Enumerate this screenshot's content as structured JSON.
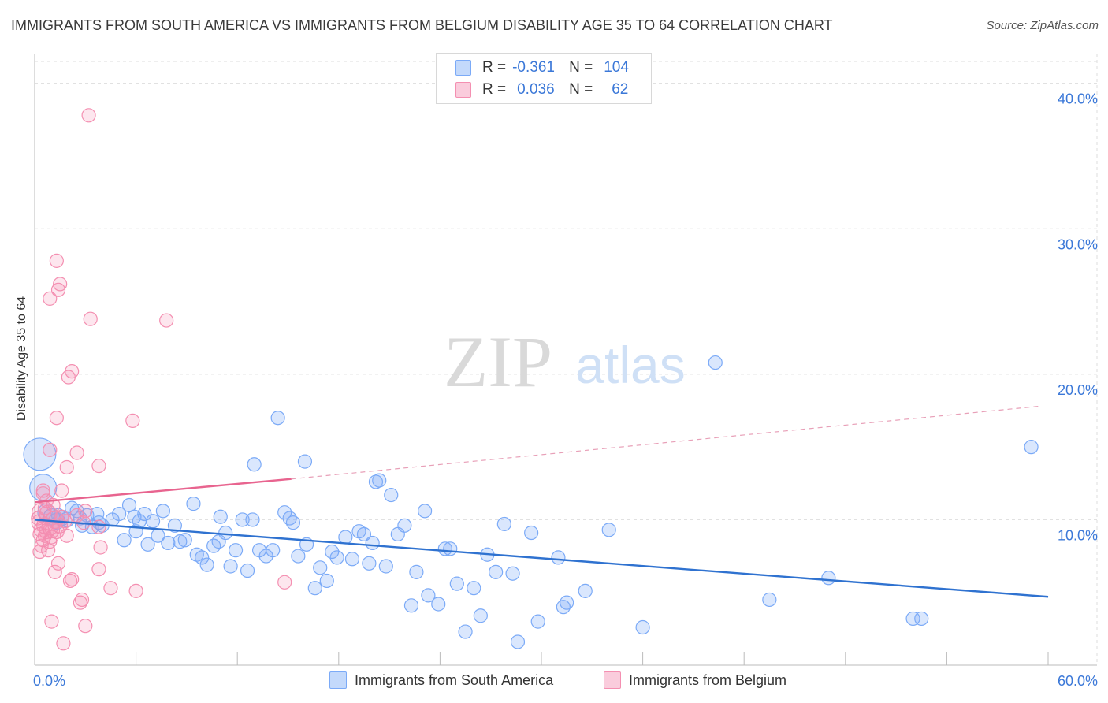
{
  "title": "IMMIGRANTS FROM SOUTH AMERICA VS IMMIGRANTS FROM BELGIUM DISABILITY AGE 35 TO 64 CORRELATION CHART",
  "source": "Source: ZipAtlas.com",
  "watermark": {
    "zip": "ZIP",
    "atlas": "atlas"
  },
  "legend": {
    "south_america": {
      "r_label": "R =",
      "r_value": "-0.361",
      "n_label": "N =",
      "n_value": "104",
      "color": "#7baaf7"
    },
    "belgium": {
      "r_label": "R =",
      "r_value": "0.036",
      "n_label": "N =",
      "n_value": "62",
      "color": "#f48fb1"
    }
  },
  "chart_data": {
    "type": "scatter",
    "title": "IMMIGRANTS FROM SOUTH AMERICA VS IMMIGRANTS FROM BELGIUM DISABILITY AGE 35 TO 64 CORRELATION CHART",
    "xlabel": "",
    "ylabel": "Disability Age 35 to 64",
    "xlim": [
      0,
      60
    ],
    "ylim": [
      0,
      41.5
    ],
    "x_tick_labels": [
      "0.0%",
      "60.0%"
    ],
    "y_ticks": [
      10,
      20,
      30,
      40
    ],
    "y_tick_labels": [
      "10.0%",
      "20.0%",
      "30.0%",
      "40.0%"
    ],
    "grid": true,
    "legend_position": "top-center",
    "series": [
      {
        "name": "Immigrants from South America",
        "color": "#7baaf7",
        "trend": {
          "x": [
            0,
            60
          ],
          "y": [
            10.0,
            4.7
          ],
          "style": "solid"
        },
        "points": [
          [
            0.3,
            14.5
          ],
          [
            0.5,
            12.2
          ],
          [
            0.7,
            10.5
          ],
          [
            1.0,
            10.2
          ],
          [
            1.3,
            9.9
          ],
          [
            1.6,
            10.1
          ],
          [
            1.9,
            10.0
          ],
          [
            2.2,
            10.8
          ],
          [
            2.5,
            10.6
          ],
          [
            2.8,
            9.6
          ],
          [
            3.1,
            10.3
          ],
          [
            3.4,
            9.5
          ],
          [
            3.7,
            10.4
          ],
          [
            4.0,
            9.6
          ],
          [
            4.6,
            10.0
          ],
          [
            5.0,
            10.4
          ],
          [
            5.3,
            8.6
          ],
          [
            5.6,
            11.0
          ],
          [
            5.9,
            10.2
          ],
          [
            6.2,
            9.9
          ],
          [
            6.5,
            10.4
          ],
          [
            6.7,
            8.3
          ],
          [
            7.0,
            9.9
          ],
          [
            7.3,
            8.9
          ],
          [
            7.6,
            10.6
          ],
          [
            7.9,
            8.4
          ],
          [
            8.3,
            9.6
          ],
          [
            8.6,
            8.5
          ],
          [
            8.9,
            8.6
          ],
          [
            9.4,
            11.1
          ],
          [
            9.6,
            7.6
          ],
          [
            9.9,
            7.4
          ],
          [
            10.2,
            6.9
          ],
          [
            10.6,
            8.2
          ],
          [
            10.9,
            8.5
          ],
          [
            11.3,
            9.1
          ],
          [
            11.6,
            6.8
          ],
          [
            11.9,
            7.9
          ],
          [
            12.3,
            10.0
          ],
          [
            12.6,
            6.5
          ],
          [
            12.9,
            10.0
          ],
          [
            13.3,
            7.9
          ],
          [
            13.7,
            7.5
          ],
          [
            14.1,
            7.9
          ],
          [
            14.4,
            17.0
          ],
          [
            14.8,
            10.5
          ],
          [
            15.1,
            10.1
          ],
          [
            15.6,
            7.5
          ],
          [
            16.1,
            8.3
          ],
          [
            16.6,
            5.3
          ],
          [
            16.9,
            6.7
          ],
          [
            17.3,
            5.8
          ],
          [
            17.6,
            7.8
          ],
          [
            17.9,
            7.4
          ],
          [
            18.4,
            8.8
          ],
          [
            18.8,
            7.3
          ],
          [
            19.2,
            9.2
          ],
          [
            19.5,
            9.0
          ],
          [
            20.0,
            8.4
          ],
          [
            20.4,
            12.7
          ],
          [
            20.8,
            6.8
          ],
          [
            21.1,
            11.7
          ],
          [
            21.5,
            9.0
          ],
          [
            21.9,
            9.6
          ],
          [
            22.3,
            4.1
          ],
          [
            22.6,
            6.4
          ],
          [
            23.1,
            10.6
          ],
          [
            23.3,
            4.8
          ],
          [
            23.9,
            4.2
          ],
          [
            24.3,
            8.0
          ],
          [
            24.6,
            8.0
          ],
          [
            25.0,
            5.6
          ],
          [
            25.5,
            2.3
          ],
          [
            26.0,
            5.3
          ],
          [
            26.4,
            3.4
          ],
          [
            26.8,
            7.6
          ],
          [
            27.3,
            6.4
          ],
          [
            27.8,
            9.7
          ],
          [
            28.3,
            6.3
          ],
          [
            28.6,
            1.6
          ],
          [
            29.4,
            9.1
          ],
          [
            29.8,
            3.0
          ],
          [
            31.0,
            7.4
          ],
          [
            31.3,
            4.0
          ],
          [
            31.5,
            4.3
          ],
          [
            32.6,
            5.1
          ],
          [
            34.0,
            9.3
          ],
          [
            36.0,
            2.6
          ],
          [
            40.3,
            20.8
          ],
          [
            43.5,
            4.5
          ],
          [
            47.0,
            6.0
          ],
          [
            52.0,
            3.2
          ],
          [
            52.5,
            3.2
          ],
          [
            59.0,
            15.0
          ],
          [
            13.0,
            13.8
          ],
          [
            16.0,
            14.0
          ],
          [
            20.2,
            12.6
          ],
          [
            1.4,
            10.3
          ],
          [
            2.7,
            10.1
          ],
          [
            3.8,
            9.8
          ],
          [
            6.0,
            9.2
          ],
          [
            11.0,
            10.2
          ],
          [
            15.3,
            9.8
          ],
          [
            19.8,
            7.0
          ]
        ],
        "sizes": [
          2.4,
          2.0,
          1.3,
          1.2,
          1.2,
          1.1,
          1.1,
          1.0,
          1.0,
          1.0,
          1.0,
          1.0,
          1.0,
          1.0,
          1.0,
          1.0,
          1.0,
          1.0,
          1.0,
          1.0,
          1.0,
          1.0,
          1.0,
          1.0,
          1.0,
          1.0,
          1.0,
          1.0,
          1.0,
          1.0,
          1.0,
          1.0,
          1.0,
          1.0,
          1.0,
          1.0,
          1.0,
          1.0,
          1.0,
          1.0,
          1.0,
          1.0,
          1.0,
          1.0,
          1.0,
          1.0,
          1.0,
          1.0,
          1.0,
          1.0,
          1.0,
          1.0,
          1.0,
          1.0,
          1.0,
          1.0,
          1.0,
          1.0,
          1.0,
          1.0,
          1.0,
          1.0,
          1.0,
          1.0,
          1.0,
          1.0,
          1.0,
          1.0,
          1.0,
          1.0,
          1.0,
          1.0,
          1.0,
          1.0,
          1.0,
          1.0,
          1.0,
          1.0,
          1.0,
          1.0,
          1.0,
          1.0,
          1.0,
          1.0,
          1.0,
          1.0,
          1.0,
          1.0,
          1.0,
          1.0,
          1.0,
          1.0,
          1.0,
          1.0,
          1.0,
          1.0,
          1.0,
          1.0,
          1.0,
          1.0,
          1.0,
          1.0,
          1.0,
          1.0
        ]
      },
      {
        "name": "Immigrants from Belgium",
        "color": "#f48fb1",
        "trend": {
          "x": [
            0,
            15.2,
            59.5
          ],
          "y": [
            11.2,
            12.8,
            17.8
          ],
          "style": "solid-then-dashed"
        },
        "points": [
          [
            3.2,
            37.8
          ],
          [
            0.9,
            25.2
          ],
          [
            1.3,
            27.8
          ],
          [
            1.4,
            25.8
          ],
          [
            1.5,
            26.2
          ],
          [
            3.3,
            23.8
          ],
          [
            7.8,
            23.7
          ],
          [
            2.2,
            20.2
          ],
          [
            2.0,
            19.8
          ],
          [
            1.3,
            17.0
          ],
          [
            5.8,
            16.8
          ],
          [
            0.9,
            14.8
          ],
          [
            2.5,
            14.6
          ],
          [
            3.8,
            13.7
          ],
          [
            1.9,
            13.6
          ],
          [
            0.5,
            12.0
          ],
          [
            1.6,
            12.0
          ],
          [
            0.7,
            11.3
          ],
          [
            1.1,
            11.0
          ],
          [
            0.4,
            10.5
          ],
          [
            0.8,
            10.4
          ],
          [
            1.2,
            10.0
          ],
          [
            0.3,
            9.8
          ],
          [
            0.6,
            9.6
          ],
          [
            0.9,
            9.5
          ],
          [
            1.0,
            9.3
          ],
          [
            1.5,
            9.6
          ],
          [
            0.4,
            9.3
          ],
          [
            0.7,
            9.2
          ],
          [
            1.3,
            9.2
          ],
          [
            0.3,
            9.0
          ],
          [
            0.6,
            8.9
          ],
          [
            1.0,
            8.8
          ],
          [
            1.9,
            8.9
          ],
          [
            0.5,
            8.6
          ],
          [
            0.9,
            8.5
          ],
          [
            0.4,
            8.2
          ],
          [
            0.3,
            7.8
          ],
          [
            3.8,
            9.5
          ],
          [
            3.9,
            8.1
          ],
          [
            1.4,
            7.0
          ],
          [
            1.2,
            6.4
          ],
          [
            2.1,
            5.8
          ],
          [
            2.2,
            5.9
          ],
          [
            3.8,
            6.6
          ],
          [
            4.5,
            5.3
          ],
          [
            6.0,
            5.1
          ],
          [
            14.8,
            5.7
          ],
          [
            2.7,
            4.3
          ],
          [
            2.8,
            4.5
          ],
          [
            1.0,
            3.0
          ],
          [
            3.0,
            2.7
          ],
          [
            1.7,
            1.5
          ],
          [
            2.5,
            10.3
          ],
          [
            3.0,
            10.6
          ],
          [
            0.6,
            10.8
          ],
          [
            0.2,
            10.1
          ],
          [
            0.5,
            11.8
          ],
          [
            1.6,
            10.2
          ],
          [
            2.9,
            9.8
          ],
          [
            0.8,
            7.9
          ],
          [
            1.8,
            9.9
          ]
        ],
        "sizes": [
          1.0,
          1.0,
          1.0,
          1.0,
          1.0,
          1.0,
          1.0,
          1.0,
          1.0,
          1.0,
          1.0,
          1.0,
          1.0,
          1.0,
          1.0,
          1.0,
          1.0,
          1.0,
          1.0,
          1.4,
          1.3,
          1.3,
          1.2,
          1.2,
          1.2,
          1.2,
          1.1,
          1.1,
          1.1,
          1.1,
          1.0,
          1.0,
          1.0,
          1.0,
          1.0,
          1.0,
          1.0,
          1.0,
          1.0,
          1.0,
          1.0,
          1.0,
          1.0,
          1.0,
          1.0,
          1.0,
          1.0,
          1.0,
          1.0,
          1.0,
          1.0,
          1.0,
          1.0,
          1.0,
          1.0,
          1.0,
          1.0,
          1.0,
          1.0,
          1.0,
          1.0,
          1.0
        ]
      }
    ]
  }
}
